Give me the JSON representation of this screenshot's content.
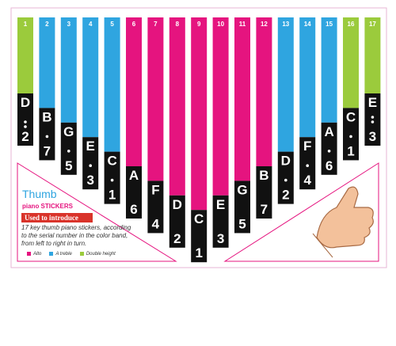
{
  "keys": [
    {
      "number": "1",
      "note": "D",
      "digit": "2",
      "octave": -2,
      "color": "#9bcb3c"
    },
    {
      "number": "2",
      "note": "B",
      "digit": "7",
      "octave": -1,
      "color": "#2fa5e0"
    },
    {
      "number": "3",
      "note": "G",
      "digit": "5",
      "octave": -1,
      "color": "#2fa5e0"
    },
    {
      "number": "4",
      "note": "E",
      "digit": "3",
      "octave": -1,
      "color": "#2fa5e0"
    },
    {
      "number": "5",
      "note": "C",
      "digit": "1",
      "octave": -1,
      "color": "#2fa5e0"
    },
    {
      "number": "6",
      "note": "A",
      "digit": "6",
      "octave": 0,
      "color": "#e5147f"
    },
    {
      "number": "7",
      "note": "F",
      "digit": "4",
      "octave": 0,
      "color": "#e5147f"
    },
    {
      "number": "8",
      "note": "D",
      "digit": "2",
      "octave": 0,
      "color": "#e5147f"
    },
    {
      "number": "9",
      "note": "C",
      "digit": "1",
      "octave": 0,
      "color": "#e5147f"
    },
    {
      "number": "10",
      "note": "E",
      "digit": "3",
      "octave": 0,
      "color": "#e5147f"
    },
    {
      "number": "11",
      "note": "G",
      "digit": "5",
      "octave": 0,
      "color": "#e5147f"
    },
    {
      "number": "12",
      "note": "B",
      "digit": "7",
      "octave": 0,
      "color": "#e5147f"
    },
    {
      "number": "13",
      "note": "D",
      "digit": "2",
      "octave": 1,
      "color": "#2fa5e0"
    },
    {
      "number": "14",
      "note": "F",
      "digit": "4",
      "octave": 1,
      "color": "#2fa5e0"
    },
    {
      "number": "15",
      "note": "A",
      "digit": "6",
      "octave": 1,
      "color": "#2fa5e0"
    },
    {
      "number": "16",
      "note": "C",
      "digit": "1",
      "octave": 1,
      "color": "#9bcb3c"
    },
    {
      "number": "17",
      "note": "E",
      "digit": "3",
      "octave": 2,
      "color": "#9bcb3c"
    }
  ],
  "brand": {
    "title": "Thumb",
    "subtitle": "piano STICKERS"
  },
  "intro": {
    "heading": "Used to introduce",
    "text": "17 key thumb piano stickers, according to the serial number in the color band, from left to right in turn."
  },
  "legend": [
    {
      "label": "Alto",
      "color": "#e5147f"
    },
    {
      "label": "A treble",
      "color": "#2fa5e0"
    },
    {
      "label": "Double height",
      "color": "#9bcb3c"
    }
  ]
}
